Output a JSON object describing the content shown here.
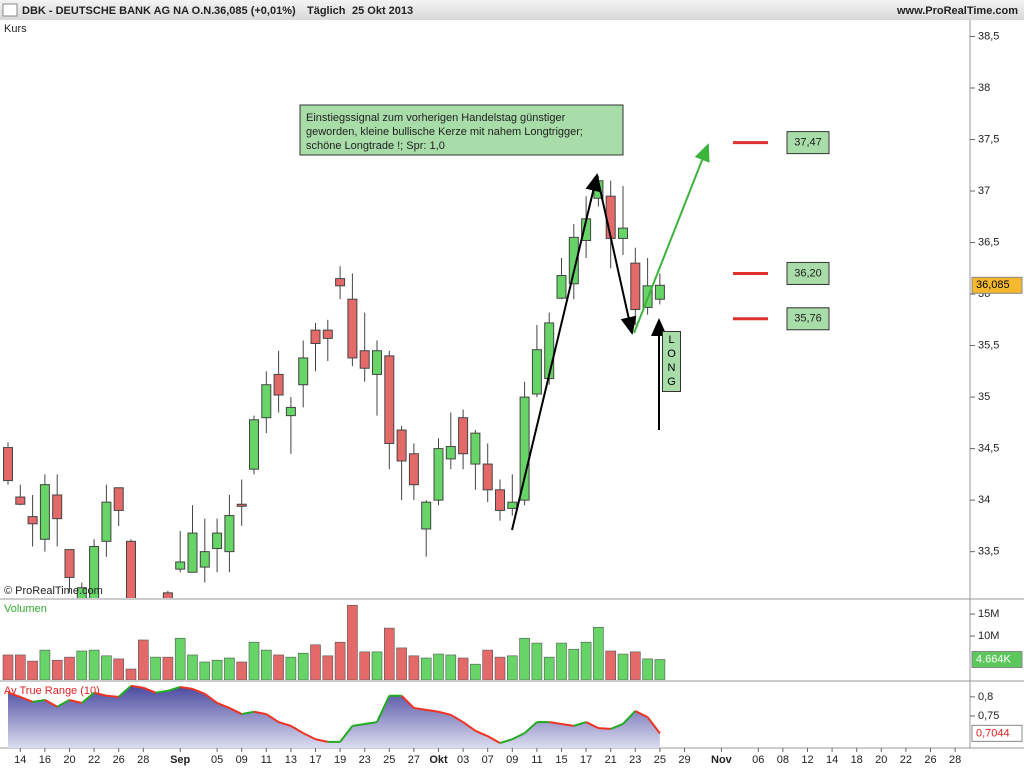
{
  "header": {
    "symbol": "DBK - DEUTSCHE BANK AG NA O.N.",
    "quote": "36,085 (+0,01%)",
    "interval": "Täglich",
    "date": "25 Okt 2013",
    "site": "www.ProRealTime.com"
  },
  "chart_data": [
    {
      "type": "candlestick",
      "title": "Kurs",
      "source": "© ProRealTime.com",
      "up_color": "#66d466",
      "down_color": "#e46a6a",
      "categories": [
        null,
        "14",
        null,
        "16",
        null,
        "20",
        null,
        "22",
        null,
        "26",
        null,
        "28",
        null,
        null,
        "Sep",
        null,
        null,
        "05",
        null,
        "09",
        null,
        "11",
        null,
        "13",
        null,
        "17",
        null,
        "19",
        null,
        "23",
        null,
        "25",
        null,
        "27",
        null,
        "Okt",
        null,
        "03",
        null,
        "07",
        null,
        "09",
        null,
        "11",
        null,
        "15",
        null,
        "17",
        null,
        "21",
        null,
        "23",
        null,
        "25",
        null,
        "29",
        null,
        null,
        "Nov",
        null,
        null,
        "06",
        null,
        "08",
        null,
        "12",
        null,
        "14",
        null,
        "18",
        null,
        "20",
        null,
        "22",
        null,
        "26",
        null,
        "28"
      ],
      "open": [
        34.51,
        34.03,
        33.84,
        33.62,
        34.05,
        33.52,
        33.03,
        33.0,
        33.6,
        34.12,
        33.6,
        33.0,
        32.8,
        33.1,
        33.33,
        33.3,
        33.35,
        33.53,
        33.5,
        33.96,
        34.3,
        34.8,
        35.22,
        34.82,
        35.12,
        35.65,
        35.65,
        36.15,
        35.95,
        35.45,
        35.22,
        35.4,
        34.68,
        34.45,
        33.72,
        34.0,
        34.4,
        34.8,
        34.35,
        34.35,
        34.1,
        33.92,
        34.0,
        35.03,
        35.18,
        35.96,
        36.1,
        36.52,
        36.93,
        36.95,
        36.54,
        36.3,
        35.87,
        35.95,
        null,
        null,
        null,
        null,
        null,
        null,
        null,
        null,
        null,
        null,
        null,
        null,
        null,
        null,
        null,
        null,
        null,
        null,
        null,
        null,
        null,
        null,
        null,
        null
      ],
      "high": [
        34.56,
        34.15,
        34.05,
        34.25,
        34.25,
        33.52,
        33.2,
        33.62,
        34.15,
        34.12,
        33.62,
        33.05,
        33.0,
        33.12,
        33.7,
        33.95,
        33.82,
        33.82,
        34.05,
        34.2,
        34.82,
        35.25,
        35.45,
        35.0,
        35.55,
        35.72,
        35.75,
        36.27,
        36.2,
        35.82,
        35.55,
        35.45,
        34.72,
        34.55,
        34.0,
        34.6,
        34.85,
        34.88,
        34.68,
        34.55,
        34.2,
        34.25,
        35.15,
        35.7,
        35.82,
        36.35,
        36.68,
        36.95,
        37.15,
        37.1,
        37.05,
        36.45,
        36.35,
        36.2,
        null,
        null,
        null,
        null,
        null,
        null,
        null,
        null,
        null,
        null,
        null,
        null,
        null,
        null,
        null,
        null,
        null,
        null,
        null,
        null,
        null,
        null,
        null,
        null
      ],
      "low": [
        34.15,
        33.95,
        33.55,
        33.5,
        33.55,
        33.1,
        32.9,
        32.95,
        33.45,
        33.75,
        32.9,
        32.7,
        32.7,
        32.9,
        33.3,
        33.3,
        33.2,
        33.3,
        33.3,
        33.75,
        34.25,
        34.65,
        34.85,
        34.45,
        34.9,
        35.25,
        35.35,
        35.95,
        35.3,
        35.15,
        34.82,
        34.3,
        34.0,
        34.0,
        33.45,
        33.95,
        34.3,
        34.3,
        34.1,
        33.98,
        33.8,
        33.85,
        33.95,
        35.0,
        35.12,
        35.95,
        35.95,
        36.35,
        36.85,
        36.25,
        36.38,
        35.7,
        35.8,
        35.9,
        null,
        null,
        null,
        null,
        null,
        null,
        null,
        null,
        null,
        null,
        null,
        null,
        null,
        null,
        null,
        null,
        null,
        null,
        null,
        null,
        null,
        null,
        null,
        null
      ],
      "close": [
        34.19,
        33.96,
        33.77,
        34.15,
        33.82,
        33.25,
        33.15,
        33.55,
        33.98,
        33.9,
        33.0,
        32.8,
        32.95,
        32.95,
        33.4,
        33.68,
        33.5,
        33.68,
        33.85,
        33.94,
        34.78,
        35.12,
        35.02,
        34.9,
        35.38,
        35.52,
        35.57,
        36.08,
        35.38,
        35.28,
        35.45,
        34.55,
        34.38,
        34.15,
        33.98,
        34.5,
        34.52,
        34.45,
        34.65,
        34.1,
        33.9,
        33.98,
        35.0,
        35.46,
        35.72,
        36.18,
        36.55,
        36.73,
        37.1,
        36.54,
        36.64,
        35.85,
        36.08,
        36.085,
        null,
        null,
        null,
        null,
        null,
        null,
        null,
        null,
        null,
        null,
        null,
        null,
        null,
        null,
        null,
        null,
        null,
        null,
        null,
        null,
        null,
        null,
        null,
        null
      ],
      "ylim": [
        33.05,
        38.66
      ],
      "yticks": [
        {
          "value": 33.5,
          "label": "33,5"
        },
        34,
        {
          "value": 34.5,
          "label": "34,5"
        },
        35,
        {
          "value": 35.5,
          "label": "35,5"
        },
        36,
        {
          "value": 36.5,
          "label": "36,5"
        },
        37,
        {
          "value": 37.5,
          "label": "37,5"
        },
        38,
        {
          "value": 38.5,
          "label": "38,5"
        }
      ],
      "last": {
        "value": 36.085,
        "label": "36,085"
      },
      "levels": [
        {
          "value": 37.47,
          "label": "37,47"
        },
        {
          "value": 36.2,
          "label": "36,20"
        },
        {
          "value": 35.76,
          "label": "35,76"
        }
      ],
      "annotation": [
        "Einstiegssignal zum vorherigen Handelstag günstiger",
        "geworden, kleine bullische Kerze mit nahem Longtrigger;",
        "schöne Longtrade !; Spr: 1,0"
      ],
      "signal": "LONG"
    },
    {
      "type": "bar",
      "title": "Volumen",
      "values": [
        5.7,
        5.7,
        4.3,
        6.8,
        4.5,
        5.2,
        6.6,
        6.8,
        5.5,
        4.8,
        2.5,
        9.1,
        5.2,
        5.2,
        9.5,
        5.7,
        4.1,
        4.5,
        5.0,
        4.1,
        8.6,
        6.8,
        5.7,
        5.2,
        6.1,
        8.0,
        5.5,
        8.6,
        17.0,
        6.4,
        6.4,
        11.8,
        7.3,
        5.5,
        5.0,
        5.9,
        5.7,
        5.0,
        3.6,
        6.8,
        5.2,
        5.5,
        9.5,
        8.4,
        5.2,
        8.4,
        7.0,
        8.6,
        12.0,
        6.6,
        5.9,
        6.4,
        4.8,
        4.664,
        null,
        null,
        null,
        null,
        null,
        null,
        null,
        null,
        null,
        null,
        null,
        null,
        null,
        null,
        null,
        null,
        null,
        null,
        null,
        null,
        null,
        null,
        null,
        null
      ],
      "ylim": [
        0,
        18.2
      ],
      "yticks": [
        {
          "value": 10,
          "label": "10M"
        },
        {
          "value": 15,
          "label": "15M"
        }
      ],
      "last": {
        "value": 4.664,
        "label": "4.664K"
      }
    },
    {
      "type": "line",
      "title": "Av True Range (10)",
      "color": "#5a5aa8",
      "up_color": "#22aa22",
      "down_color": "#ee3322",
      "values": [
        0.811,
        0.8,
        0.787,
        0.792,
        0.774,
        0.792,
        0.784,
        0.811,
        0.803,
        0.8,
        0.829,
        0.824,
        0.811,
        0.816,
        0.826,
        0.821,
        0.808,
        0.784,
        0.771,
        0.755,
        0.761,
        0.755,
        0.734,
        0.724,
        0.705,
        0.689,
        0.682,
        0.682,
        0.724,
        0.729,
        0.734,
        0.803,
        0.803,
        0.771,
        0.766,
        0.761,
        0.753,
        0.734,
        0.711,
        0.697,
        0.679,
        0.689,
        0.705,
        0.734,
        0.734,
        0.729,
        0.724,
        0.734,
        0.718,
        0.716,
        0.729,
        0.763,
        0.747,
        0.7044,
        null,
        null,
        null,
        null,
        null,
        null,
        null,
        null,
        null,
        null,
        null,
        null,
        null,
        null,
        null,
        null,
        null,
        null,
        null,
        null,
        null,
        null,
        null,
        null
      ],
      "ylim": [
        0.666,
        0.839
      ],
      "yticks": [
        {
          "value": 0.75,
          "label": "0,75"
        },
        {
          "value": 0.8,
          "label": "0,8"
        }
      ],
      "last": {
        "value": 0.7044,
        "label": "0,7044"
      }
    }
  ]
}
